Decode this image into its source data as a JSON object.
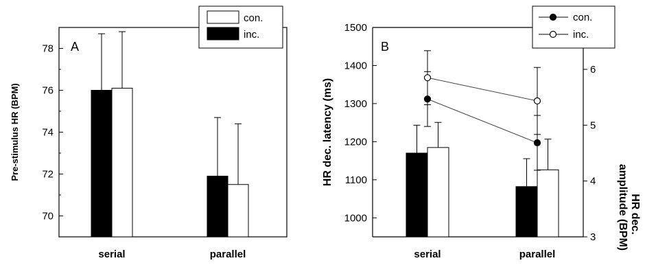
{
  "chart_data": [
    {
      "panel": "A",
      "type": "bar",
      "ylabel": "Pre-stimulus HR (BPM)",
      "ylim": [
        69,
        79
      ],
      "yticks": [
        "70",
        "72",
        "74",
        "76",
        "78"
      ],
      "categories": [
        "serial",
        "parallel"
      ],
      "legend": [
        "con.",
        "inc."
      ],
      "legend_position": "top-right",
      "series": [
        {
          "name": "inc.",
          "fill": "#000000",
          "values": [
            76.0,
            71.9
          ],
          "error": [
            2.7,
            2.8
          ]
        },
        {
          "name": "con.",
          "fill": "#ffffff",
          "values": [
            76.1,
            71.5
          ],
          "error": [
            2.7,
            2.9
          ]
        }
      ]
    },
    {
      "panel": "B",
      "type": "line",
      "ylabel_left": "HR dec. latency (ms)",
      "ylabel_right_line1": "HR dec.",
      "ylabel_right_line2": "amplitude (BPM)",
      "ylim_left": [
        950,
        1500
      ],
      "yticks_left": [
        "1000",
        "1100",
        "1200",
        "1300",
        "1400",
        "1500"
      ],
      "ylim_right": [
        3,
        6.75
      ],
      "yticks_right": [
        "3",
        "4",
        "5",
        "6"
      ],
      "categories": [
        "serial",
        "parallel"
      ],
      "legend": [
        "con.",
        "inc."
      ],
      "legend_position": "top-right",
      "lines": [
        {
          "name": "con.",
          "marker": "filled-circle",
          "values": [
            1312,
            1197
          ],
          "error": [
            72,
            72
          ]
        },
        {
          "name": "inc.",
          "marker": "open-circle",
          "values": [
            1368,
            1307
          ],
          "error": [
            71,
            88
          ]
        }
      ],
      "bars_right_axis": [
        {
          "name": "inc.",
          "fill": "#000000",
          "values": [
            4.5,
            3.9
          ],
          "error": [
            0.5,
            0.5
          ]
        },
        {
          "name": "con.",
          "fill": "#ffffff",
          "values": [
            4.6,
            4.2
          ],
          "error": [
            0.45,
            0.55
          ]
        }
      ]
    }
  ]
}
